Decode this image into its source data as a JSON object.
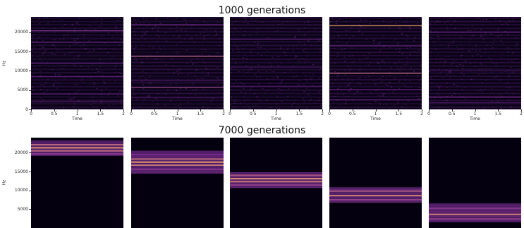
{
  "titles": {
    "top": "1000 generations",
    "bottom": "7000 generations"
  },
  "colors": {
    "background": "#05000f",
    "low": "#1a0b3a",
    "mid": "#7a2d8f",
    "high": "#f0a070"
  },
  "chart_data": [
    {
      "type": "heatmap",
      "row": "top",
      "panel": 1,
      "xlabel": "Time",
      "ylabel": "Hz",
      "xlim": [
        0,
        2
      ],
      "ylim": [
        0,
        24000
      ],
      "xticks": [
        "0",
        "0.5",
        "1",
        "1.5",
        "2"
      ],
      "yticks": [
        "0",
        "5000",
        "10000",
        "15000",
        "20000"
      ],
      "bands": [
        {
          "hz": 20400,
          "intensity": 0.55
        },
        {
          "hz": 17400,
          "intensity": 0.35
        },
        {
          "hz": 12000,
          "intensity": 0.3
        },
        {
          "hz": 8500,
          "intensity": 0.35
        },
        {
          "hz": 4000,
          "intensity": 0.3
        },
        {
          "hz": 2000,
          "intensity": 0.3
        }
      ]
    },
    {
      "type": "heatmap",
      "row": "top",
      "panel": 2,
      "xlabel": "Time",
      "xlim": [
        0,
        2
      ],
      "ylim": [
        0,
        24000
      ],
      "xticks": [
        "0",
        "0.5",
        "1",
        "1.5",
        "2"
      ],
      "bands": [
        {
          "hz": 22000,
          "intensity": 0.4
        },
        {
          "hz": 13800,
          "intensity": 0.75
        },
        {
          "hz": 7400,
          "intensity": 0.35
        },
        {
          "hz": 5700,
          "intensity": 0.65
        },
        {
          "hz": 3000,
          "intensity": 0.3
        }
      ]
    },
    {
      "type": "heatmap",
      "row": "top",
      "panel": 3,
      "xlabel": "Time",
      "xlim": [
        0,
        2
      ],
      "ylim": [
        0,
        24000
      ],
      "xticks": [
        "0",
        "0.5",
        "1",
        "1.5",
        "2"
      ],
      "bands": [
        {
          "hz": 18200,
          "intensity": 0.3
        },
        {
          "hz": 11000,
          "intensity": 0.25
        },
        {
          "hz": 6000,
          "intensity": 0.25
        }
      ]
    },
    {
      "type": "heatmap",
      "row": "top",
      "panel": 4,
      "xlabel": "Time",
      "xlim": [
        0,
        2
      ],
      "ylim": [
        0,
        24000
      ],
      "xticks": [
        "0",
        "0.5",
        "1",
        "1.5",
        "2"
      ],
      "bands": [
        {
          "hz": 21700,
          "intensity": 1.0
        },
        {
          "hz": 16500,
          "intensity": 0.35
        },
        {
          "hz": 9400,
          "intensity": 0.85
        },
        {
          "hz": 5200,
          "intensity": 0.35
        },
        {
          "hz": 2500,
          "intensity": 0.3
        }
      ]
    },
    {
      "type": "heatmap",
      "row": "top",
      "panel": 5,
      "xlabel": "Time",
      "xlim": [
        0,
        2
      ],
      "ylim": [
        0,
        24000
      ],
      "xticks": [
        "0",
        "0.5",
        "1",
        "1.5",
        "2"
      ],
      "bands": [
        {
          "hz": 20000,
          "intensity": 0.35
        },
        {
          "hz": 10000,
          "intensity": 0.3
        },
        {
          "hz": 3200,
          "intensity": 0.45
        },
        {
          "hz": 1800,
          "intensity": 0.3
        }
      ]
    },
    {
      "type": "heatmap",
      "row": "bottom",
      "panel": 1,
      "ylabel": "Hz",
      "ylim": [
        0,
        24000
      ],
      "yticks": [
        "5000",
        "10000",
        "15000",
        "20000"
      ],
      "energy_range_hz": [
        19200,
        23200
      ],
      "bands": [
        {
          "hz": 22100,
          "intensity": 0.8
        },
        {
          "hz": 21300,
          "intensity": 0.95
        },
        {
          "hz": 20500,
          "intensity": 0.8
        },
        {
          "hz": 19700,
          "intensity": 0.55
        }
      ]
    },
    {
      "type": "heatmap",
      "row": "bottom",
      "panel": 2,
      "ylim": [
        0,
        24000
      ],
      "energy_range_hz": [
        14500,
        20500
      ],
      "bands": [
        {
          "hz": 19500,
          "intensity": 0.5
        },
        {
          "hz": 18300,
          "intensity": 0.8
        },
        {
          "hz": 17500,
          "intensity": 1.0
        },
        {
          "hz": 16700,
          "intensity": 0.85
        },
        {
          "hz": 15600,
          "intensity": 0.55
        }
      ]
    },
    {
      "type": "heatmap",
      "row": "bottom",
      "panel": 3,
      "ylim": [
        0,
        24000
      ],
      "energy_range_hz": [
        10600,
        14800
      ],
      "bands": [
        {
          "hz": 14000,
          "intensity": 0.7
        },
        {
          "hz": 13100,
          "intensity": 0.95
        },
        {
          "hz": 12300,
          "intensity": 0.85
        },
        {
          "hz": 11400,
          "intensity": 0.6
        }
      ]
    },
    {
      "type": "heatmap",
      "row": "bottom",
      "panel": 4,
      "ylim": [
        0,
        24000
      ],
      "energy_range_hz": [
        6800,
        10800
      ],
      "bands": [
        {
          "hz": 9800,
          "intensity": 0.7
        },
        {
          "hz": 8600,
          "intensity": 0.9
        },
        {
          "hz": 7500,
          "intensity": 0.6
        }
      ]
    },
    {
      "type": "heatmap",
      "row": "bottom",
      "panel": 5,
      "ylim": [
        0,
        24000
      ],
      "energy_range_hz": [
        1500,
        6500
      ],
      "bands": [
        {
          "hz": 5200,
          "intensity": 0.55
        },
        {
          "hz": 3600,
          "intensity": 0.85
        },
        {
          "hz": 2400,
          "intensity": 0.6
        }
      ]
    }
  ]
}
